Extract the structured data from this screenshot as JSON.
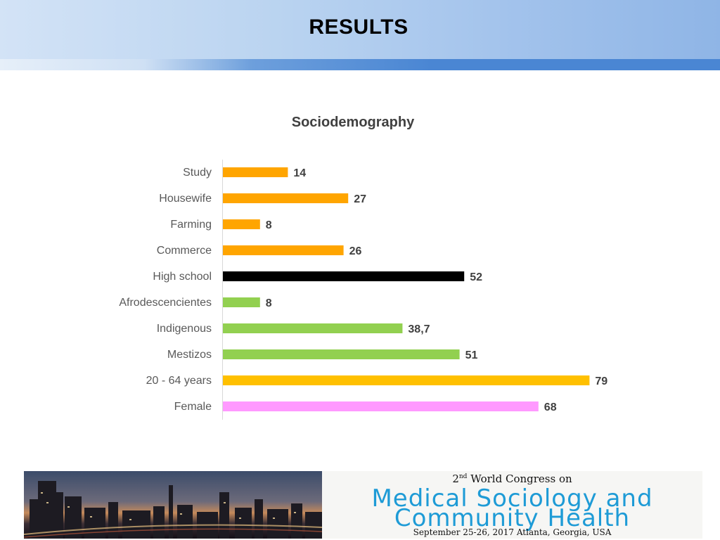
{
  "slide": {
    "title": "RESULTS"
  },
  "colors": {
    "orange": "#FFA500",
    "black": "#000000",
    "green": "#92D050",
    "gold": "#FFC000",
    "pink": "#FF99FF"
  },
  "chart_data": {
    "type": "bar",
    "orientation": "horizontal",
    "title": "Sociodemography",
    "xlabel": "",
    "ylabel": "",
    "grid": false,
    "legend": "none",
    "xlim": [
      0,
      80
    ],
    "categories": [
      "Study",
      "Housewife",
      "Farming",
      "Commerce",
      "High school",
      "Afrodescencientes",
      "Indigenous",
      "Mestizos",
      "20 - 64 years",
      "Female"
    ],
    "values": [
      14,
      27,
      8,
      26,
      52,
      8,
      38.7,
      51,
      79,
      68
    ],
    "value_labels": [
      "14",
      "27",
      "8",
      "26",
      "52",
      "8",
      "38,7",
      "51",
      "79",
      "68"
    ],
    "bar_colors": [
      "#FFA500",
      "#FFA500",
      "#FFA500",
      "#FFA500",
      "#000000",
      "#92D050",
      "#92D050",
      "#92D050",
      "#FFC000",
      "#FF99FF"
    ]
  },
  "banner": {
    "line1_prefix": "2",
    "line1_sup": "nd",
    "line1_rest": " World Congress on",
    "line2": "Medical Sociology and",
    "line3": "Community Health",
    "date": "September 25-26, 2017 Atlanta, Georgia, USA"
  }
}
